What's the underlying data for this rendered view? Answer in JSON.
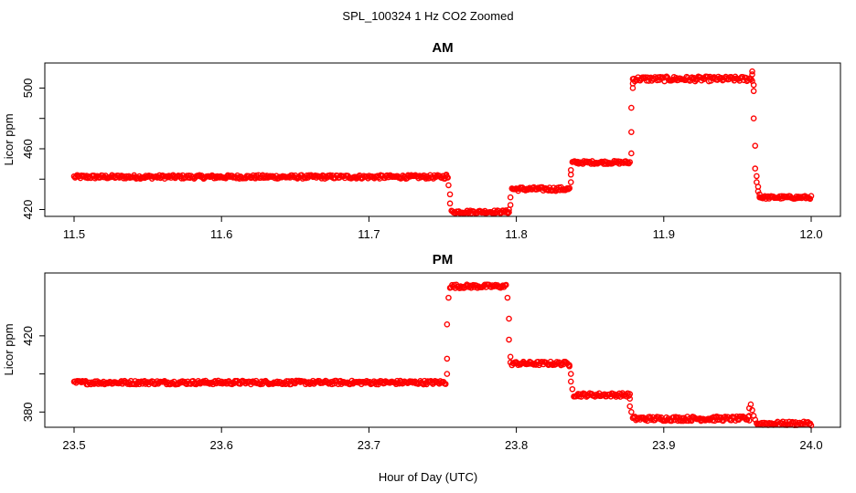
{
  "figure": {
    "title": "SPL_100324  1 Hz CO2 Zoomed",
    "xlabel": "Hour of Day (UTC)",
    "point_color": "#ff0000"
  },
  "chart_data": [
    {
      "type": "scatter",
      "title": "AM",
      "xlabel": "",
      "ylabel": "Licor ppm",
      "xlim": [
        11.5,
        12.0
      ],
      "ylim": [
        415.5,
        516.5
      ],
      "x_ticks": [
        11.5,
        11.6,
        11.7,
        11.8,
        11.9,
        12.0
      ],
      "x_tick_labels": [
        "11.5",
        "11.6",
        "11.7",
        "11.8",
        "11.9",
        "12.0"
      ],
      "y_ticks": [
        420,
        440,
        460,
        480,
        500
      ],
      "y_tick_labels": [
        "420",
        "460",
        "500"
      ],
      "grid": false,
      "segments": [
        {
          "x_start": 11.5,
          "x_end": 11.753,
          "y": 441.5,
          "noise": 1.2
        },
        {
          "x_start": 11.756,
          "x_end": 11.795,
          "y": 418.5,
          "noise": 1.0
        },
        {
          "x_start": 11.797,
          "x_end": 11.836,
          "y": 433.5,
          "noise": 1.3
        },
        {
          "x_start": 11.838,
          "x_end": 11.877,
          "y": 451.0,
          "noise": 1.0
        },
        {
          "x_start": 11.879,
          "x_end": 11.96,
          "y": 506.0,
          "noise": 1.6
        },
        {
          "x_start": 11.965,
          "x_end": 12.0,
          "y": 428.0,
          "noise": 1.0
        }
      ],
      "transitions": [
        {
          "x": 11.7525,
          "y": 443
        },
        {
          "x": 11.7535,
          "y": 441
        },
        {
          "x": 11.754,
          "y": 436
        },
        {
          "x": 11.755,
          "y": 430
        },
        {
          "x": 11.755,
          "y": 424
        },
        {
          "x": 11.795,
          "y": 420
        },
        {
          "x": 11.796,
          "y": 423
        },
        {
          "x": 11.796,
          "y": 428
        },
        {
          "x": 11.836,
          "y": 434
        },
        {
          "x": 11.837,
          "y": 438
        },
        {
          "x": 11.837,
          "y": 443
        },
        {
          "x": 11.837,
          "y": 446
        },
        {
          "x": 11.878,
          "y": 457
        },
        {
          "x": 11.878,
          "y": 471
        },
        {
          "x": 11.878,
          "y": 487
        },
        {
          "x": 11.879,
          "y": 500
        },
        {
          "x": 11.879,
          "y": 503
        },
        {
          "x": 11.96,
          "y": 511
        },
        {
          "x": 11.96,
          "y": 509
        },
        {
          "x": 11.961,
          "y": 502
        },
        {
          "x": 11.961,
          "y": 498
        },
        {
          "x": 11.961,
          "y": 480
        },
        {
          "x": 11.962,
          "y": 462
        },
        {
          "x": 11.962,
          "y": 447
        },
        {
          "x": 11.963,
          "y": 442
        },
        {
          "x": 11.963,
          "y": 438
        },
        {
          "x": 11.964,
          "y": 435
        },
        {
          "x": 11.964,
          "y": 432
        },
        {
          "x": 11.965,
          "y": 430
        }
      ]
    },
    {
      "type": "scatter",
      "title": "PM",
      "xlabel": "Hour of Day (UTC)",
      "ylabel": "Licor ppm",
      "xlim": [
        23.5,
        24.0
      ],
      "ylim": [
        372,
        453
      ],
      "x_ticks": [
        23.5,
        23.6,
        23.7,
        23.8,
        23.9,
        24.0
      ],
      "x_tick_labels": [
        "23.5",
        "23.6",
        "23.7",
        "23.8",
        "23.9",
        "24.0"
      ],
      "y_ticks": [
        380,
        400,
        420
      ],
      "y_tick_labels": [
        "380",
        "420"
      ],
      "grid": false,
      "segments": [
        {
          "x_start": 23.5,
          "x_end": 23.752,
          "y": 395.5,
          "noise": 1.0
        },
        {
          "x_start": 23.755,
          "x_end": 23.793,
          "y": 446.0,
          "noise": 1.0
        },
        {
          "x_start": 23.797,
          "x_end": 23.836,
          "y": 405.5,
          "noise": 1.0
        },
        {
          "x_start": 23.839,
          "x_end": 23.877,
          "y": 389.0,
          "noise": 1.0
        },
        {
          "x_start": 23.879,
          "x_end": 23.958,
          "y": 376.5,
          "noise": 1.2
        },
        {
          "x_start": 23.963,
          "x_end": 24.0,
          "y": 374.0,
          "noise": 1.0
        }
      ],
      "transitions": [
        {
          "x": 23.753,
          "y": 400
        },
        {
          "x": 23.753,
          "y": 408
        },
        {
          "x": 23.753,
          "y": 426
        },
        {
          "x": 23.754,
          "y": 440
        },
        {
          "x": 23.794,
          "y": 440
        },
        {
          "x": 23.795,
          "y": 429
        },
        {
          "x": 23.795,
          "y": 418
        },
        {
          "x": 23.796,
          "y": 409
        },
        {
          "x": 23.796,
          "y": 406
        },
        {
          "x": 23.836,
          "y": 404
        },
        {
          "x": 23.837,
          "y": 400
        },
        {
          "x": 23.837,
          "y": 396
        },
        {
          "x": 23.838,
          "y": 392
        },
        {
          "x": 23.877,
          "y": 387
        },
        {
          "x": 23.877,
          "y": 383
        },
        {
          "x": 23.878,
          "y": 380
        },
        {
          "x": 23.958,
          "y": 378
        },
        {
          "x": 23.958,
          "y": 382
        },
        {
          "x": 23.959,
          "y": 384
        },
        {
          "x": 23.96,
          "y": 381
        },
        {
          "x": 23.961,
          "y": 378
        },
        {
          "x": 23.962,
          "y": 376
        }
      ]
    }
  ]
}
